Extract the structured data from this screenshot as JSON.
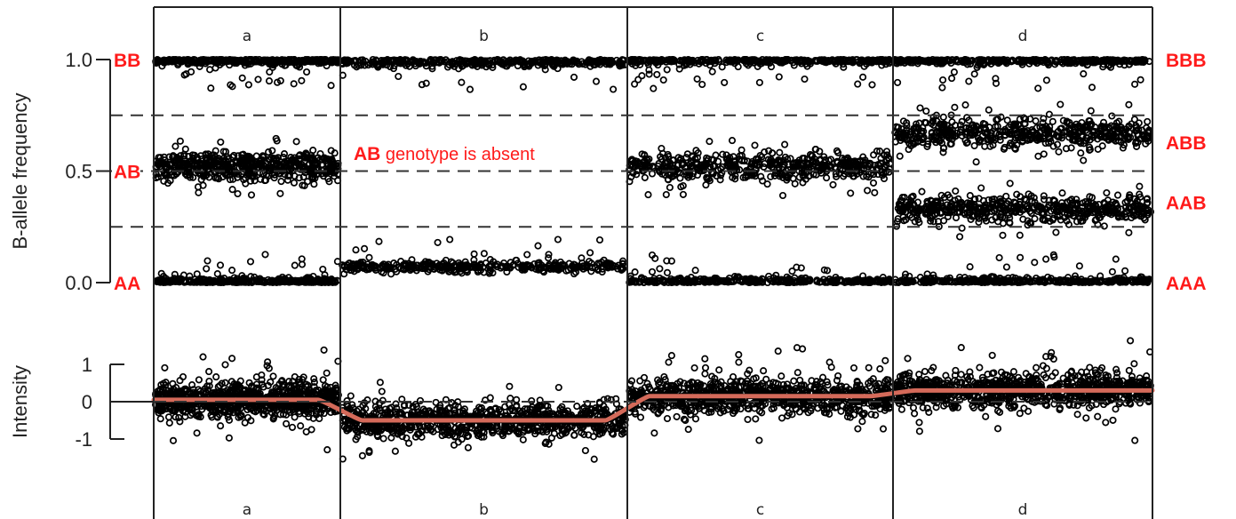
{
  "chart_data": [
    {
      "type": "scatter",
      "ylabel": "B-allele frequency",
      "ylim": [
        0,
        1
      ],
      "yticks": [
        "0.0",
        "0.5",
        "1.0"
      ],
      "dashed_thresholds": [
        0.25,
        0.5,
        0.75
      ],
      "panels": [
        "a",
        "b",
        "c",
        "d"
      ],
      "genotype_labels_left": [
        {
          "label": "BB",
          "y": 1.0
        },
        {
          "label": "AB",
          "y": 0.5
        },
        {
          "label": "AA",
          "y": 0.0
        }
      ],
      "genotype_labels_right": [
        {
          "label": "BBB",
          "y": 1.0
        },
        {
          "label": "ABB",
          "y": 0.667
        },
        {
          "label": "AAB",
          "y": 0.333
        },
        {
          "label": "AAA",
          "y": 0.0
        }
      ],
      "annotation": {
        "strong": "AB",
        "rest": " genotype is absent"
      },
      "series": [
        {
          "panel": "a",
          "band_centers": [
            0.0,
            0.52,
            1.0
          ]
        },
        {
          "panel": "b",
          "band_centers": [
            0.07,
            0.99
          ]
        },
        {
          "panel": "c",
          "band_centers": [
            0.0,
            0.52,
            1.0
          ]
        },
        {
          "panel": "d",
          "band_centers": [
            0.0,
            0.33,
            0.67,
            1.0
          ]
        }
      ]
    },
    {
      "type": "scatter",
      "ylabel": "Intensity",
      "ylim": [
        -1.6,
        1.6
      ],
      "yticks": [
        "1",
        "0",
        "-1"
      ],
      "panels": [
        "a",
        "b",
        "c",
        "d"
      ],
      "trend_color": "#d46a5a",
      "series": [
        {
          "panel": "a",
          "level": 0.05
        },
        {
          "panel": "b",
          "level": -0.5
        },
        {
          "panel": "c",
          "level": 0.15
        },
        {
          "panel": "d",
          "level": 0.3
        }
      ]
    }
  ],
  "colors": {
    "points": "#000000",
    "genotype_text": "#ff1a1a",
    "trend_line": "#d46a5a"
  }
}
